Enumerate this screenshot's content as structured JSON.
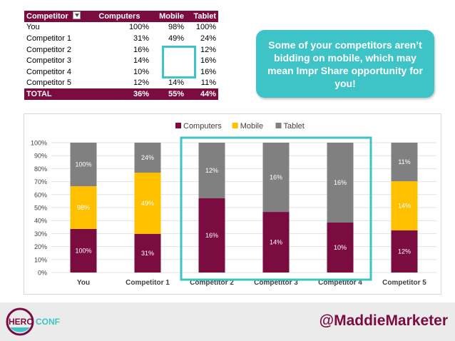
{
  "table": {
    "headers": [
      "Competitor",
      "Computers",
      "Mobile",
      "Tablet"
    ],
    "rows": [
      {
        "name": "You",
        "computers": "100%",
        "mobile": "98%",
        "tablet": "100%"
      },
      {
        "name": "Competitor 1",
        "computers": "31%",
        "mobile": "49%",
        "tablet": "24%"
      },
      {
        "name": "Competitor 2",
        "computers": "16%",
        "mobile": "",
        "tablet": "12%"
      },
      {
        "name": "Competitor 3",
        "computers": "14%",
        "mobile": "",
        "tablet": "16%"
      },
      {
        "name": "Competitor 4",
        "computers": "10%",
        "mobile": "",
        "tablet": "16%"
      },
      {
        "name": "Competitor 5",
        "computers": "12%",
        "mobile": "14%",
        "tablet": "11%"
      }
    ],
    "total": {
      "name": "TOTAL",
      "computers": "36%",
      "mobile": "55%",
      "tablet": "44%"
    }
  },
  "callout": {
    "text": "Some of your competitors aren’t bidding on mobile, which may mean Impr Share opportunity for you!"
  },
  "footer": {
    "logo_hero": "HERO",
    "logo_conf": "CONF",
    "handle": "@MaddieMarketer"
  },
  "colors": {
    "computers": "#7b0c3f",
    "mobile": "#ffc000",
    "tablet": "#808080",
    "highlight": "#3ec3c7"
  },
  "chart_data": {
    "type": "bar",
    "stacked": true,
    "categories": [
      "You",
      "Competitor 1",
      "Competitor 2",
      "Competitor 3",
      "Competitor 4",
      "Competitor 5"
    ],
    "series": [
      {
        "name": "Computers",
        "segment_share": [
          0.3356,
          0.298,
          0.5714,
          0.4667,
          0.3846,
          0.3243
        ],
        "labels": [
          "100%",
          "31%",
          "16%",
          "14%",
          "10%",
          "12%"
        ]
      },
      {
        "name": "Mobile",
        "segment_share": [
          0.3289,
          0.4712,
          0,
          0,
          0,
          0.3784
        ],
        "labels": [
          "98%",
          "49%",
          "",
          "",
          "",
          "14%"
        ]
      },
      {
        "name": "Tablet",
        "segment_share": [
          0.3356,
          0.2308,
          0.4286,
          0.5333,
          0.6154,
          0.2973
        ],
        "labels": [
          "100%",
          "24%",
          "12%",
          "16%",
          "16%",
          "11%"
        ]
      }
    ],
    "y_ticks": [
      "0%",
      "10%",
      "20%",
      "30%",
      "40%",
      "50%",
      "60%",
      "70%",
      "80%",
      "90%",
      "100%"
    ],
    "ylim": [
      0,
      100
    ],
    "legend": "top",
    "highlighted_categories": [
      "Competitor 2",
      "Competitor 3",
      "Competitor 4"
    ]
  }
}
